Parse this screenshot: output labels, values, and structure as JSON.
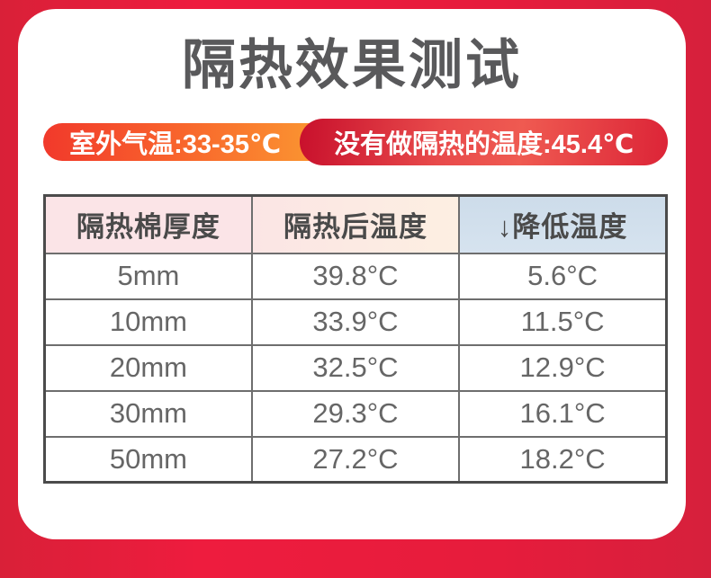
{
  "title": "隔热效果测试",
  "badges": {
    "outdoor_temp": "室外气温:33-35℃",
    "no_insulation_temp": "没有做隔热的温度:45.4℃"
  },
  "table": {
    "headers": [
      "隔热棉厚度",
      "隔热后温度",
      "↓降低温度"
    ],
    "rows": [
      [
        "5mm",
        "39.8°C",
        "5.6°C"
      ],
      [
        "10mm",
        "33.9°C",
        "11.5°C"
      ],
      [
        "20mm",
        "32.5°C",
        "12.9°C"
      ],
      [
        "30mm",
        "29.3°C",
        "16.1°C"
      ],
      [
        "50mm",
        "27.2°C",
        "18.2°C"
      ]
    ]
  },
  "colors": {
    "background_red": "#e61c3c",
    "card_white": "#ffffff",
    "title_gray": "#59595b",
    "pill_orange_start": "#f1392b",
    "pill_orange_end": "#fb9a31",
    "pill_red_dark": "#c8102c",
    "pill_red_light": "#ef5a51",
    "header_pink": "#fbe4e7",
    "header_cream": "#fdefe2",
    "header_blue": "#cddcea",
    "table_outer_border": "#4b4b4b",
    "table_inner_border": "#6e6e6e",
    "cell_text_gray": "#666666"
  },
  "chart_data": {
    "type": "table",
    "title": "隔热效果测试",
    "context": {
      "outdoor_air_temp_label": "室外气温",
      "outdoor_air_temp_c": "33-35",
      "no_insulation_label": "没有做隔热的温度",
      "no_insulation_temp_c": 45.4
    },
    "columns": [
      "隔热棉厚度",
      "隔热后温度",
      "↓降低温度"
    ],
    "rows": [
      {
        "thickness": "5mm",
        "temp_after_c": 39.8,
        "reduction_c": 5.6
      },
      {
        "thickness": "10mm",
        "temp_after_c": 33.9,
        "reduction_c": 11.5
      },
      {
        "thickness": "20mm",
        "temp_after_c": 32.5,
        "reduction_c": 12.9
      },
      {
        "thickness": "30mm",
        "temp_after_c": 29.3,
        "reduction_c": 16.1
      },
      {
        "thickness": "50mm",
        "temp_after_c": 27.2,
        "reduction_c": 18.2
      }
    ]
  }
}
